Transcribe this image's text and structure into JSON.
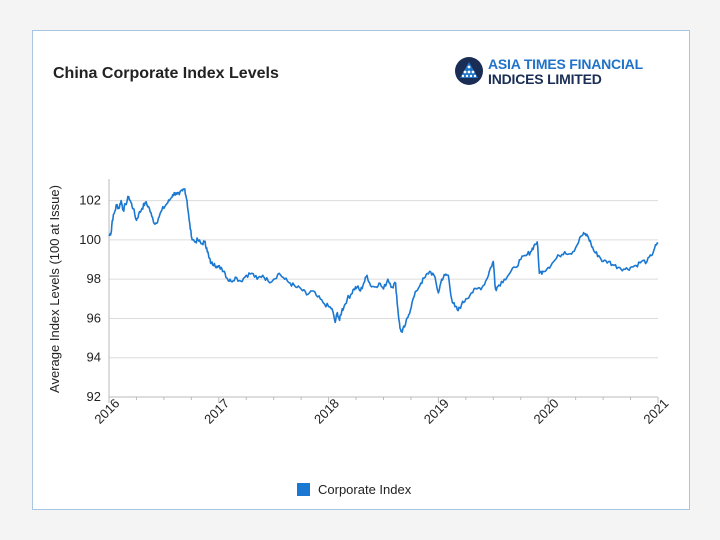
{
  "chart_data": {
    "type": "line",
    "title": "China Corporate Index Levels",
    "ylabel": "Average Index Levels (100 at Issue)",
    "xlabel": "",
    "ylim": [
      92,
      103
    ],
    "y_ticks": [
      "92",
      "94",
      "96",
      "98",
      "100",
      "102"
    ],
    "x_ticks": [
      "2016",
      "2017",
      "2018",
      "2019",
      "2020",
      "2021"
    ],
    "xlim": [
      2016.0,
      2021.0
    ],
    "grid": "horizontal",
    "legend_position": "bottom-center",
    "series": [
      {
        "name": "Corporate Index",
        "color": "#1a78d2",
        "points": [
          [
            2016.0,
            100.2
          ],
          [
            2016.02,
            100.4
          ],
          [
            2016.03,
            101.0
          ],
          [
            2016.05,
            101.4
          ],
          [
            2016.07,
            101.8
          ],
          [
            2016.09,
            101.6
          ],
          [
            2016.11,
            102.0
          ],
          [
            2016.13,
            101.5
          ],
          [
            2016.15,
            101.8
          ],
          [
            2016.18,
            102.2
          ],
          [
            2016.2,
            101.9
          ],
          [
            2016.22,
            101.6
          ],
          [
            2016.25,
            101.0
          ],
          [
            2016.27,
            101.3
          ],
          [
            2016.3,
            101.6
          ],
          [
            2016.33,
            101.9
          ],
          [
            2016.36,
            101.7
          ],
          [
            2016.39,
            101.2
          ],
          [
            2016.42,
            100.8
          ],
          [
            2016.45,
            101.1
          ],
          [
            2016.48,
            101.5
          ],
          [
            2016.52,
            101.8
          ],
          [
            2016.55,
            102.0
          ],
          [
            2016.58,
            102.3
          ],
          [
            2016.61,
            102.4
          ],
          [
            2016.64,
            102.3
          ],
          [
            2016.67,
            102.5
          ],
          [
            2016.69,
            102.6
          ],
          [
            2016.71,
            102.0
          ],
          [
            2016.73,
            101.0
          ],
          [
            2016.75,
            100.2
          ],
          [
            2016.78,
            99.9
          ],
          [
            2016.81,
            100.0
          ],
          [
            2016.84,
            99.8
          ],
          [
            2016.87,
            99.9
          ],
          [
            2016.89,
            99.6
          ],
          [
            2016.91,
            99.1
          ],
          [
            2016.93,
            98.8
          ],
          [
            2016.96,
            98.8
          ],
          [
            2016.99,
            98.6
          ],
          [
            2017.02,
            98.6
          ],
          [
            2017.05,
            98.4
          ],
          [
            2017.08,
            98.0
          ],
          [
            2017.11,
            97.9
          ],
          [
            2017.15,
            98.1
          ],
          [
            2017.2,
            97.9
          ],
          [
            2017.25,
            98.2
          ],
          [
            2017.3,
            98.3
          ],
          [
            2017.35,
            98.0
          ],
          [
            2017.4,
            98.2
          ],
          [
            2017.45,
            97.9
          ],
          [
            2017.5,
            98.0
          ],
          [
            2017.55,
            98.3
          ],
          [
            2017.6,
            98.0
          ],
          [
            2017.65,
            97.8
          ],
          [
            2017.7,
            97.6
          ],
          [
            2017.75,
            97.5
          ],
          [
            2017.8,
            97.2
          ],
          [
            2017.85,
            97.4
          ],
          [
            2017.9,
            97.1
          ],
          [
            2017.95,
            96.8
          ],
          [
            2018.0,
            96.6
          ],
          [
            2018.03,
            96.5
          ],
          [
            2018.06,
            95.8
          ],
          [
            2018.08,
            96.3
          ],
          [
            2018.1,
            95.9
          ],
          [
            2018.12,
            96.4
          ],
          [
            2018.14,
            96.6
          ],
          [
            2018.17,
            97.0
          ],
          [
            2018.2,
            97.2
          ],
          [
            2018.23,
            97.5
          ],
          [
            2018.26,
            97.6
          ],
          [
            2018.29,
            97.4
          ],
          [
            2018.32,
            97.8
          ],
          [
            2018.35,
            98.2
          ],
          [
            2018.38,
            97.7
          ],
          [
            2018.42,
            97.6
          ],
          [
            2018.46,
            97.8
          ],
          [
            2018.5,
            97.5
          ],
          [
            2018.54,
            98.0
          ],
          [
            2018.58,
            97.6
          ],
          [
            2018.61,
            97.8
          ],
          [
            2018.63,
            96.5
          ],
          [
            2018.65,
            95.5
          ],
          [
            2018.67,
            95.3
          ],
          [
            2018.7,
            95.7
          ],
          [
            2018.73,
            96.2
          ],
          [
            2018.76,
            96.8
          ],
          [
            2018.8,
            97.4
          ],
          [
            2018.84,
            97.8
          ],
          [
            2018.88,
            98.1
          ],
          [
            2018.92,
            98.4
          ],
          [
            2018.96,
            98.2
          ],
          [
            2019.0,
            97.3
          ],
          [
            2019.03,
            98.0
          ],
          [
            2019.06,
            98.2
          ],
          [
            2019.09,
            98.2
          ],
          [
            2019.12,
            97.0
          ],
          [
            2019.15,
            96.6
          ],
          [
            2019.18,
            96.4
          ],
          [
            2019.21,
            96.7
          ],
          [
            2019.25,
            97.0
          ],
          [
            2019.3,
            97.3
          ],
          [
            2019.35,
            97.5
          ],
          [
            2019.4,
            97.6
          ],
          [
            2019.44,
            98.0
          ],
          [
            2019.47,
            98.5
          ],
          [
            2019.5,
            98.9
          ],
          [
            2019.52,
            97.5
          ],
          [
            2019.55,
            97.7
          ],
          [
            2019.6,
            98.0
          ],
          [
            2019.65,
            98.3
          ],
          [
            2019.7,
            98.6
          ],
          [
            2019.75,
            99.0
          ],
          [
            2019.8,
            99.2
          ],
          [
            2019.84,
            99.4
          ],
          [
            2019.87,
            99.7
          ],
          [
            2019.9,
            99.9
          ],
          [
            2019.92,
            98.3
          ],
          [
            2019.95,
            98.4
          ],
          [
            2020.0,
            98.6
          ],
          [
            2020.05,
            98.9
          ],
          [
            2020.1,
            99.2
          ],
          [
            2020.15,
            99.4
          ],
          [
            2020.2,
            99.3
          ],
          [
            2020.25,
            99.6
          ],
          [
            2020.3,
            100.2
          ],
          [
            2020.33,
            100.3
          ],
          [
            2020.36,
            100.2
          ],
          [
            2020.39,
            99.8
          ],
          [
            2020.42,
            99.4
          ],
          [
            2020.46,
            99.2
          ],
          [
            2020.5,
            98.9
          ],
          [
            2020.55,
            98.9
          ],
          [
            2020.6,
            98.7
          ],
          [
            2020.65,
            98.6
          ],
          [
            2020.7,
            98.5
          ],
          [
            2020.75,
            98.6
          ],
          [
            2020.8,
            98.7
          ],
          [
            2020.85,
            98.9
          ],
          [
            2020.9,
            98.9
          ],
          [
            2020.94,
            99.2
          ],
          [
            2020.97,
            99.6
          ],
          [
            2021.0,
            99.8
          ]
        ]
      }
    ]
  },
  "logo": {
    "line1": "ASIA TIMES FINANCIAL",
    "line2": "INDICES LIMITED",
    "icon": "atf-logo-icon"
  }
}
